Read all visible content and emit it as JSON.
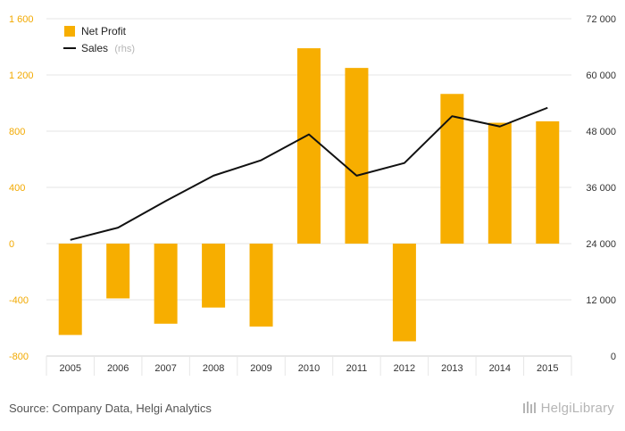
{
  "chart_data": {
    "type": "bar+line",
    "categories": [
      "2005",
      "2006",
      "2007",
      "2008",
      "2009",
      "2010",
      "2011",
      "2012",
      "2013",
      "2014",
      "2015"
    ],
    "series": [
      {
        "name": "Net Profit",
        "type": "bar",
        "axis": "left",
        "values": [
          -650,
          -390,
          -570,
          -455,
          -590,
          1390,
          1250,
          -695,
          1065,
          860,
          870
        ]
      },
      {
        "name": "Sales",
        "name_suffix": "(rhs)",
        "type": "line",
        "axis": "right",
        "values": [
          24800,
          27400,
          33100,
          38500,
          41800,
          47300,
          38500,
          41200,
          51200,
          49000,
          53000
        ]
      }
    ],
    "left_axis": {
      "min": -800,
      "max": 1600,
      "ticks": [
        -800,
        -400,
        0,
        400,
        800,
        1200,
        1600
      ],
      "tick_labels": [
        "-800",
        "-400",
        "0",
        "400",
        "800",
        "1 200",
        "1 600"
      ]
    },
    "right_axis": {
      "min": 0,
      "max": 72000,
      "ticks": [
        0,
        12000,
        24000,
        36000,
        48000,
        60000,
        72000
      ],
      "tick_labels": [
        "0",
        "12 000",
        "24 000",
        "36 000",
        "48 000",
        "60 000",
        "72 000"
      ]
    },
    "grid": true,
    "legend_position": "top-left",
    "colors": {
      "bar": "#F7AE00",
      "line": "#111111",
      "left_tick": "#F2A900",
      "grid": "#e6e6e6"
    }
  },
  "footer": {
    "source": "Source: Company Data, Helgi Analytics",
    "brand": "HelgiLibrary"
  }
}
